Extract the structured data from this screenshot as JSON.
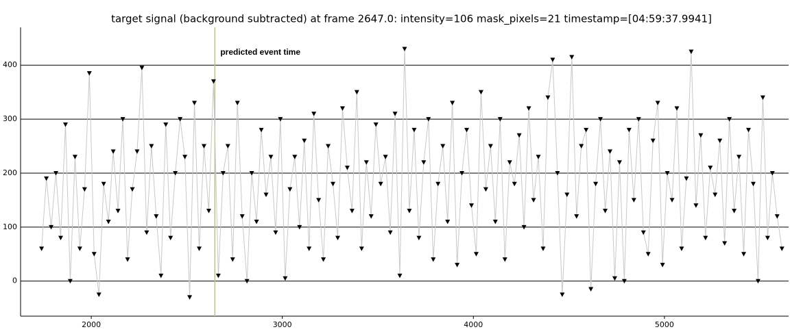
{
  "chart_data": {
    "type": "line",
    "title": "target signal (background subtracted) at frame 2647.0: intensity=106 mask_pixels=21 timestamp=[04:59:37.9941]",
    "annotation": "predicted event time",
    "event_x": 2647,
    "event_color": "#c8c070",
    "line_color": "#c8c8c8",
    "marker_color": "#000000",
    "grid": true,
    "xlim": [
      1630,
      5650
    ],
    "xticks": [
      2000,
      3000,
      4000,
      5000
    ],
    "ylim": [
      -65,
      470
    ],
    "yticks": [
      0,
      100,
      200,
      300,
      400
    ],
    "x": [
      1740,
      1765,
      1790,
      1815,
      1840,
      1865,
      1890,
      1915,
      1940,
      1965,
      1990,
      2015,
      2040,
      2065,
      2090,
      2115,
      2140,
      2165,
      2190,
      2215,
      2240,
      2265,
      2290,
      2315,
      2340,
      2365,
      2390,
      2415,
      2440,
      2465,
      2490,
      2515,
      2540,
      2565,
      2590,
      2615,
      2640,
      2665,
      2690,
      2715,
      2740,
      2765,
      2790,
      2815,
      2840,
      2865,
      2890,
      2915,
      2940,
      2965,
      2990,
      3015,
      3040,
      3065,
      3090,
      3115,
      3140,
      3165,
      3190,
      3215,
      3240,
      3265,
      3290,
      3315,
      3340,
      3365,
      3390,
      3415,
      3440,
      3465,
      3490,
      3515,
      3540,
      3565,
      3590,
      3615,
      3640,
      3665,
      3690,
      3715,
      3740,
      3765,
      3790,
      3815,
      3840,
      3865,
      3890,
      3915,
      3940,
      3965,
      3990,
      4015,
      4040,
      4065,
      4090,
      4115,
      4140,
      4165,
      4190,
      4215,
      4240,
      4265,
      4290,
      4315,
      4340,
      4365,
      4390,
      4415,
      4440,
      4465,
      4490,
      4515,
      4540,
      4565,
      4590,
      4615,
      4640,
      4665,
      4690,
      4715,
      4740,
      4765,
      4790,
      4815,
      4840,
      4865,
      4890,
      4915,
      4940,
      4965,
      4990,
      5015,
      5040,
      5065,
      5090,
      5115,
      5140,
      5165,
      5190,
      5215,
      5240,
      5265,
      5290,
      5315,
      5340,
      5365,
      5390,
      5415,
      5440,
      5465,
      5490,
      5515,
      5540,
      5565,
      5590,
      5615
    ],
    "values": [
      60,
      190,
      100,
      200,
      80,
      290,
      0,
      230,
      60,
      170,
      385,
      50,
      -25,
      180,
      110,
      240,
      130,
      300,
      40,
      170,
      240,
      395,
      90,
      250,
      120,
      10,
      290,
      80,
      200,
      300,
      230,
      -30,
      330,
      60,
      250,
      130,
      370,
      10,
      200,
      250,
      40,
      330,
      120,
      0,
      200,
      110,
      280,
      160,
      230,
      90,
      300,
      5,
      170,
      230,
      100,
      260,
      60,
      310,
      150,
      40,
      250,
      180,
      80,
      320,
      210,
      130,
      350,
      60,
      220,
      120,
      290,
      180,
      230,
      90,
      310,
      10,
      430,
      130,
      280,
      80,
      220,
      300,
      40,
      180,
      250,
      110,
      330,
      30,
      200,
      280,
      140,
      50,
      350,
      170,
      250,
      110,
      300,
      40,
      220,
      180,
      270,
      100,
      320,
      150,
      230,
      60,
      340,
      410,
      200,
      -25,
      160,
      415,
      120,
      250,
      280,
      -15,
      180,
      300,
      130,
      240,
      5,
      220,
      0,
      280,
      150,
      300,
      90,
      50,
      260,
      330,
      30,
      200,
      150,
      320,
      60,
      190,
      425,
      140,
      270,
      80,
      210,
      160,
      260,
      70,
      300,
      130,
      230,
      50,
      280,
      180,
      0,
      340,
      80,
      200,
      120,
      60
    ]
  }
}
